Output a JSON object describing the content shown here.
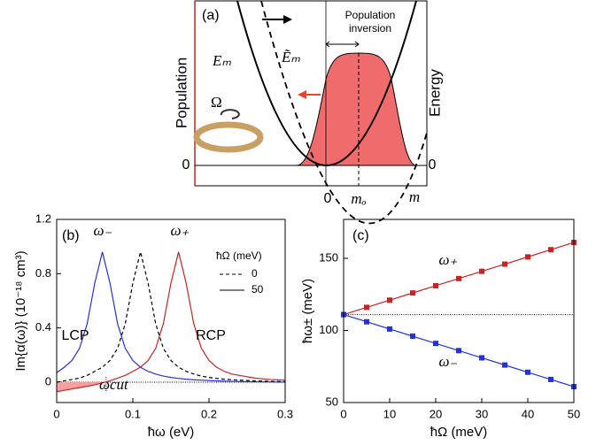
{
  "panel_a": {
    "label": "(a)",
    "left_axis": "Population",
    "right_axis": "Energy",
    "zero_left": "0",
    "zero_right": "0",
    "x_zero": "0",
    "x_mo": "mₒ",
    "x_m": "m",
    "curve_solid": "Eₘ",
    "curve_dashed": "Ẽₘ",
    "rotation": "Ω",
    "inversion": [
      "Population",
      "inversion"
    ]
  },
  "chart_data": [
    {
      "type": "line",
      "xlabel": "ħω (eV)",
      "ylabel": "Im{α(ω)} (10⁻¹⁸ cm³)",
      "xlim": [
        0,
        0.3
      ],
      "ylim": [
        -0.15,
        1.2
      ],
      "xticks": [
        0,
        0.1,
        0.2,
        0.3
      ],
      "yticks": [
        0,
        0.4,
        0.8,
        1.2
      ],
      "annotations": [
        "(b)",
        "ω₋",
        "ω₊",
        "ωcut"
      ],
      "cutoff_x": 0.065,
      "zero_line": 0,
      "legend": {
        "title": "ħΩ (meV)",
        "entries": [
          {
            "label": "0",
            "dashed": true
          },
          {
            "label": "50",
            "dashed": false
          }
        ],
        "position": "upper right"
      },
      "x": [
        0,
        0.01,
        0.02,
        0.03,
        0.04,
        0.05,
        0.06,
        0.07,
        0.08,
        0.09,
        0.1,
        0.11,
        0.12,
        0.13,
        0.14,
        0.15,
        0.16,
        0.17,
        0.18,
        0.19,
        0.2,
        0.21,
        0.22,
        0.23,
        0.24,
        0.25,
        0.26,
        0.27,
        0.28,
        0.29,
        0.3
      ],
      "series": [
        {
          "name": "LCP",
          "color": "#2233dd",
          "dashed": false,
          "values": [
            0.07,
            0.11,
            0.16,
            0.25,
            0.43,
            0.73,
            0.96,
            0.73,
            0.43,
            0.25,
            0.16,
            0.11,
            0.08,
            0.06,
            0.045,
            0.035,
            0.028,
            0.022,
            0.018,
            0.015,
            0.012,
            0.01,
            0.008,
            0.006,
            0.005,
            0.004,
            0.003,
            0.002,
            0.002,
            0.001,
            0.001
          ]
        },
        {
          "name": "RCP",
          "color": "#cc2222",
          "dashed": false,
          "shade_negative": true,
          "values": [
            -0.07,
            -0.06,
            -0.05,
            -0.04,
            -0.03,
            -0.02,
            -0.005,
            0.01,
            0.03,
            0.05,
            0.08,
            0.11,
            0.16,
            0.25,
            0.43,
            0.73,
            0.96,
            0.73,
            0.43,
            0.25,
            0.16,
            0.11,
            0.08,
            0.06,
            0.05,
            0.04,
            0.03,
            0.025,
            0.02,
            0.017,
            0.015
          ]
        },
        {
          "color": "#000000",
          "dashed": true,
          "values": [
            0,
            0.01,
            0.02,
            0.03,
            0.05,
            0.08,
            0.11,
            0.16,
            0.25,
            0.43,
            0.73,
            0.96,
            0.73,
            0.43,
            0.25,
            0.16,
            0.11,
            0.08,
            0.06,
            0.045,
            0.035,
            0.028,
            0.022,
            0.018,
            0.015,
            0.012,
            0.01,
            0.008,
            0.006,
            0.005,
            0.004
          ]
        }
      ]
    },
    {
      "type": "line",
      "xlabel": "ħΩ (meV)",
      "ylabel": "ħω± (meV)",
      "xlim": [
        0,
        50
      ],
      "ylim": [
        50,
        177
      ],
      "xticks": [
        0,
        10,
        20,
        30,
        40,
        50
      ],
      "yticks": [
        50,
        100,
        150
      ],
      "annotations": [
        "(c)"
      ],
      "zero_line": 111,
      "x": [
        0,
        5,
        10,
        15,
        20,
        25,
        30,
        35,
        40,
        45,
        50
      ],
      "series": [
        {
          "name": "ω₊",
          "color": "#cc2222",
          "marker": "square",
          "values": [
            111,
            116,
            121,
            126,
            131,
            136,
            141,
            146,
            151,
            156,
            161
          ]
        },
        {
          "name": "ω₋",
          "color": "#2233dd",
          "marker": "square",
          "values": [
            111,
            106,
            101,
            96,
            91,
            86,
            81,
            76,
            71,
            66,
            61
          ]
        }
      ]
    }
  ]
}
